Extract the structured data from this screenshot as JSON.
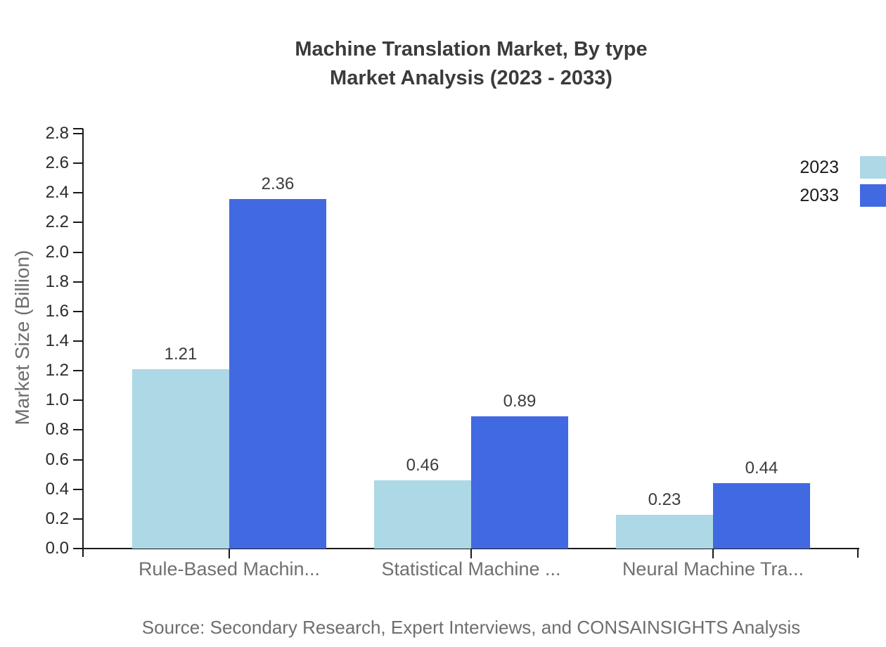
{
  "title": {
    "line1": "Machine Translation Market, By type",
    "line2": "Market Analysis (2023 - 2033)"
  },
  "source": "Source: Secondary Research, Expert Interviews, and CONSAINSIGHTS Analysis",
  "chart_data": {
    "type": "bar",
    "title": "Machine Translation Market, By type Market Analysis (2023 - 2033)",
    "categories": [
      "Rule-Based Machin...",
      "Statistical Machine ...",
      "Neural Machine Tra..."
    ],
    "series": [
      {
        "name": "2023",
        "color": "#ADD8E6",
        "values": [
          1.21,
          0.46,
          0.23
        ]
      },
      {
        "name": "2033",
        "color": "#4169E1",
        "values": [
          2.36,
          0.89,
          0.44
        ]
      }
    ],
    "xlabel": "",
    "ylabel": "Market Size (Billion)",
    "ylim": [
      0,
      2.8
    ],
    "ytick_step": 0.2,
    "ytick_labels": [
      "0.0",
      "0.2",
      "0.4",
      "0.6",
      "0.8",
      "1.0",
      "1.2",
      "1.4",
      "1.6",
      "1.8",
      "2.0",
      "2.2",
      "2.4",
      "2.6",
      "2.8"
    ],
    "value_labels": [
      "1.21",
      "2.36",
      "0.46",
      "0.89",
      "0.23",
      "0.44"
    ],
    "grid": false,
    "legend_position": "top-right"
  },
  "colors": {
    "axis": "#1a1a1a",
    "title_text": "#3b3b3b",
    "tick_text": "#2b2b2b",
    "category_text": "#707070",
    "value_text": "#3c3c3c",
    "muted_text": "#6e6e6e",
    "legend_text": "#1a1a1a",
    "background": "#ffffff",
    "series_2023": "#ADD8E6",
    "series_2033": "#4169E1"
  }
}
